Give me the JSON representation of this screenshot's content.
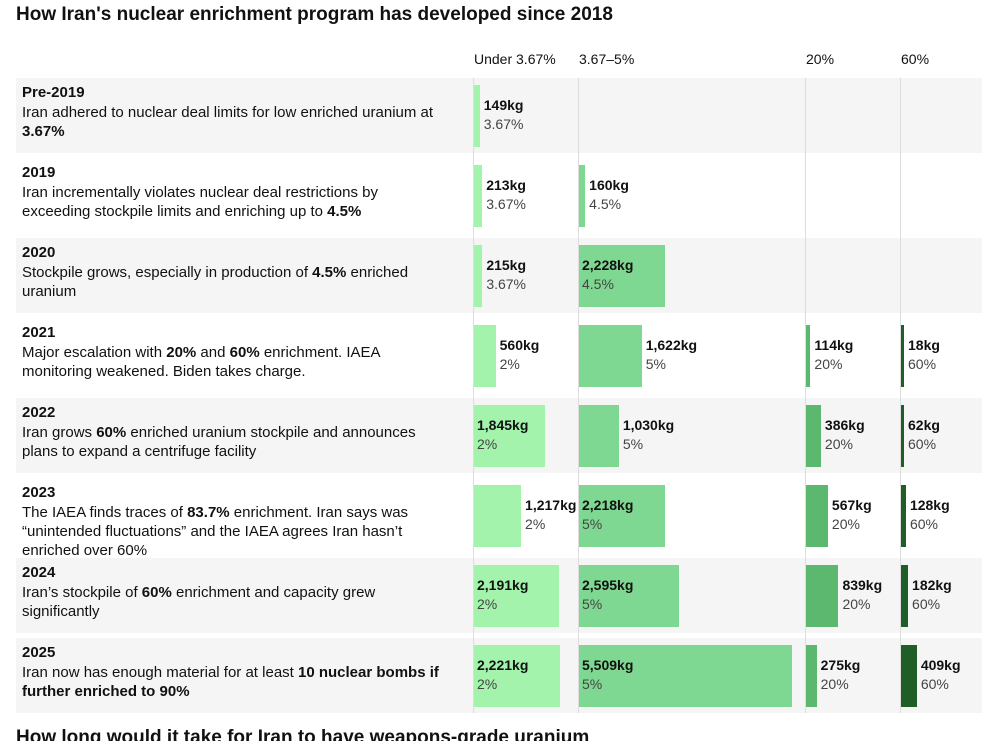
{
  "title": "How Iran's nuclear enrichment program has developed since 2018",
  "columns": [
    "Under 3.67%",
    "3.67–5%",
    "20%",
    "60%"
  ],
  "colors": [
    "#a3f3ad",
    "#7fd891",
    "#5cb86e",
    "#1f5e26"
  ],
  "rows": [
    {
      "year": "Pre-2019",
      "description": [
        {
          "text": "Iran adhered to nuclear deal limits for low enriched uranium at ",
          "bold": false
        },
        {
          "text": "3.67%",
          "bold": true
        }
      ],
      "cells": [
        {
          "value": 149,
          "value_label": "149kg",
          "level": "3.67%"
        },
        null,
        null,
        null
      ]
    },
    {
      "year": "2019",
      "description": [
        {
          "text": "Iran incrementally violates nuclear deal restrictions by exceeding stockpile limits and enriching up to ",
          "bold": false
        },
        {
          "text": "4.5%",
          "bold": true
        }
      ],
      "cells": [
        {
          "value": 213,
          "value_label": "213kg",
          "level": "3.67%"
        },
        {
          "value": 160,
          "value_label": "160kg",
          "level": "4.5%"
        },
        null,
        null
      ]
    },
    {
      "year": "2020",
      "description": [
        {
          "text": "Stockpile grows, especially in production of ",
          "bold": false
        },
        {
          "text": "4.5%",
          "bold": true
        },
        {
          "text": " enriched uranium",
          "bold": false
        }
      ],
      "cells": [
        {
          "value": 215,
          "value_label": "215kg",
          "level": "3.67%"
        },
        {
          "value": 2228,
          "value_label": "2,228kg",
          "level": "4.5%"
        },
        null,
        null
      ]
    },
    {
      "year": "2021",
      "description": [
        {
          "text": "Major escalation with ",
          "bold": false
        },
        {
          "text": "20%",
          "bold": true
        },
        {
          "text": " and ",
          "bold": false
        },
        {
          "text": "60%",
          "bold": true
        },
        {
          "text": " enrichment. IAEA monitoring weakened. Biden takes charge.",
          "bold": false
        }
      ],
      "cells": [
        {
          "value": 560,
          "value_label": "560kg",
          "level": "2%"
        },
        {
          "value": 1622,
          "value_label": "1,622kg",
          "level": "5%"
        },
        {
          "value": 114,
          "value_label": "114kg",
          "level": "20%"
        },
        {
          "value": 18,
          "value_label": "18kg",
          "level": "60%"
        }
      ]
    },
    {
      "year": "2022",
      "description": [
        {
          "text": "Iran grows ",
          "bold": false
        },
        {
          "text": "60%",
          "bold": true
        },
        {
          "text": " enriched uranium stockpile and announces plans to expand a centrifuge facility",
          "bold": false
        }
      ],
      "cells": [
        {
          "value": 1845,
          "value_label": "1,845kg",
          "level": "2%"
        },
        {
          "value": 1030,
          "value_label": "1,030kg",
          "level": "5%"
        },
        {
          "value": 386,
          "value_label": "386kg",
          "level": "20%"
        },
        {
          "value": 62,
          "value_label": "62kg",
          "level": "60%"
        }
      ]
    },
    {
      "year": "2023",
      "description": [
        {
          "text": "The IAEA finds traces of ",
          "bold": false
        },
        {
          "text": "83.7%",
          "bold": true
        },
        {
          "text": " enrichment. Iran says was “unintended fluctuations” and the IAEA agrees Iran hasn’t enriched over 60%",
          "bold": false
        }
      ],
      "cells": [
        {
          "value": 1217,
          "value_label": "1,217kg",
          "level": "2%"
        },
        {
          "value": 2218,
          "value_label": "2,218kg",
          "level": "5%"
        },
        {
          "value": 567,
          "value_label": "567kg",
          "level": "20%"
        },
        {
          "value": 128,
          "value_label": "128kg",
          "level": "60%"
        }
      ]
    },
    {
      "year": "2024",
      "description": [
        {
          "text": "Iran’s stockpile of ",
          "bold": false
        },
        {
          "text": "60%",
          "bold": true
        },
        {
          "text": " enrichment and capacity grew significantly",
          "bold": false
        }
      ],
      "cells": [
        {
          "value": 2191,
          "value_label": "2,191kg",
          "level": "2%"
        },
        {
          "value": 2595,
          "value_label": "2,595kg",
          "level": "5%"
        },
        {
          "value": 839,
          "value_label": "839kg",
          "level": "20%"
        },
        {
          "value": 182,
          "value_label": "182kg",
          "level": "60%"
        }
      ]
    },
    {
      "year": "2025",
      "description": [
        {
          "text": "Iran now has enough material for at least ",
          "bold": false
        },
        {
          "text": "10 nuclear bombs if further enriched to 90%",
          "bold": true
        }
      ],
      "cells": [
        {
          "value": 2221,
          "value_label": "2,221kg",
          "level": "2%"
        },
        {
          "value": 5509,
          "value_label": "5,509kg",
          "level": "5%"
        },
        {
          "value": 275,
          "value_label": "275kg",
          "level": "20%"
        },
        {
          "value": 409,
          "value_label": "409kg",
          "level": "60%"
        }
      ]
    }
  ],
  "next_title": "How long would it take for Iran to have weapons-grade uranium"
}
